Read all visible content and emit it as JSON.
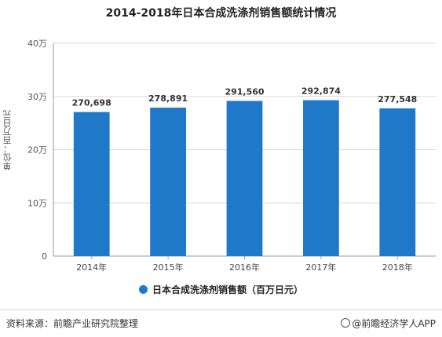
{
  "chart_data": {
    "type": "bar",
    "title": "2014-2018年日本合成洗涤剂销售额统计情况",
    "ylabel": "单位：百万日元",
    "xlabel": "",
    "categories": [
      "2014年",
      "2015年",
      "2016年",
      "2017年",
      "2018年"
    ],
    "series": [
      {
        "name": "日本合成洗涤剂销售额（百万日元）",
        "values": [
          270698,
          278891,
          291560,
          292874,
          277548
        ],
        "labels": [
          "270,698",
          "278,891",
          "291,560",
          "292,874",
          "277,548"
        ],
        "color": "#1f78c8"
      }
    ],
    "ylim": [
      0,
      400000
    ],
    "yticks": [
      0,
      100000,
      200000,
      300000,
      400000
    ],
    "ytick_labels": [
      "0",
      "10万",
      "20万",
      "30万",
      "40万"
    ],
    "grid": true,
    "legend_position": "bottom"
  },
  "footer": {
    "source": "资料来源：前瞻产业研究院整理",
    "brand": "@前瞻经济学人APP"
  }
}
